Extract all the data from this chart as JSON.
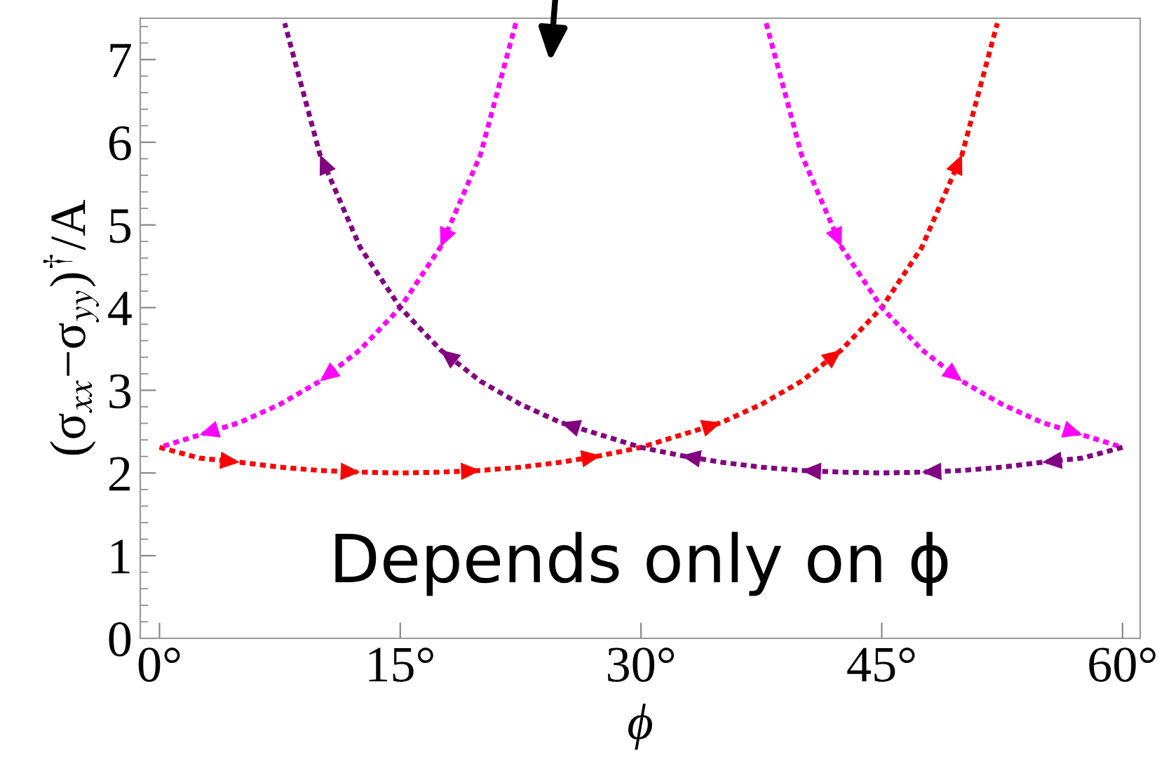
{
  "chart_data": {
    "type": "line",
    "xlabel": "ϕ",
    "ylabel": "(σ$_{xx}$−σ$_{yy}$)$^{†}$/A",
    "annotations": [
      "Depends only on ϕ"
    ],
    "xlim": [
      -1.2,
      61.1
    ],
    "ylim": [
      0,
      7.5
    ],
    "xticks": [
      {
        "value": 0,
        "label": "0°"
      },
      {
        "value": 15,
        "label": "15°"
      },
      {
        "value": 30,
        "label": "30°"
      },
      {
        "value": 45,
        "label": "45°"
      },
      {
        "value": 60,
        "label": "60°"
      }
    ],
    "yticks": [
      0,
      1,
      2,
      3,
      4,
      5,
      6,
      7
    ],
    "line_style": "dotted",
    "grid": false,
    "legend": false,
    "series": [
      {
        "color": "#ff0000",
        "x": [
          0,
          2.5,
          5,
          7.5,
          10,
          12.5,
          15,
          17.5,
          20,
          22.5,
          25,
          27.5,
          30,
          32.5,
          35,
          37.5,
          40,
          42.5,
          45,
          47.5,
          50,
          52.2
        ],
        "values": [
          2.31,
          2.18,
          2.13,
          2.07,
          2.03,
          2.01,
          2.0,
          2.01,
          2.03,
          2.07,
          2.13,
          2.21,
          2.31,
          2.46,
          2.61,
          2.83,
          3.11,
          3.49,
          4.0,
          4.73,
          5.85,
          7.44
        ]
      },
      {
        "color": "#ff00ff",
        "x": [
          22.2,
          20,
          17.5,
          15,
          12.5,
          10,
          7.5,
          5,
          2.5,
          0
        ],
        "values": [
          7.44,
          5.85,
          4.73,
          4.0,
          3.49,
          3.11,
          2.83,
          2.61,
          2.46,
          2.31
        ]
      },
      {
        "color": "#ff00ff",
        "x": [
          37.8,
          40,
          42.5,
          45,
          47.5,
          50,
          52.5,
          55,
          57.5,
          60
        ],
        "values": [
          7.44,
          5.85,
          4.73,
          4.0,
          3.49,
          3.11,
          2.83,
          2.61,
          2.46,
          2.31
        ]
      },
      {
        "color": "#800080",
        "x": [
          60,
          57.5,
          55,
          52.5,
          50,
          47.5,
          45,
          42.5,
          40,
          37.5,
          35,
          32.5,
          30,
          27.5,
          25,
          22.5,
          20,
          17.5,
          15,
          12.5,
          10,
          7.8
        ],
        "values": [
          2.31,
          2.18,
          2.13,
          2.07,
          2.03,
          2.01,
          2.0,
          2.01,
          2.03,
          2.07,
          2.13,
          2.21,
          2.31,
          2.46,
          2.61,
          2.83,
          3.11,
          3.49,
          4.0,
          4.73,
          5.85,
          7.44
        ]
      }
    ]
  }
}
